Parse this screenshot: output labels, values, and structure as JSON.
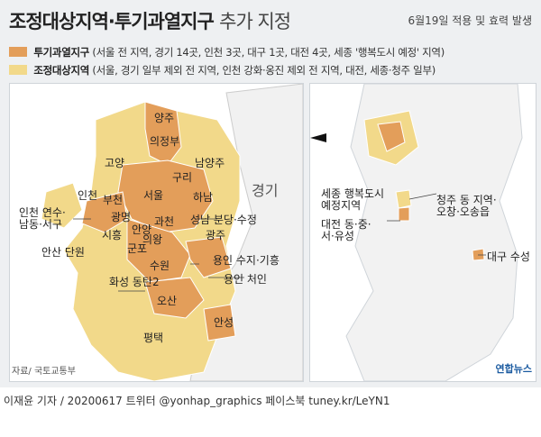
{
  "title": {
    "main": "조정대상지역·투기과열지구",
    "sub": "추가 지정"
  },
  "effective_note": "6월19일 적용 및 효력 발생",
  "legend": [
    {
      "label": "투기과열지구",
      "detail": "(서울 전 지역, 경기 14곳, 인천 3곳, 대구 1곳, 대전 4곳, 세종 '행복도시 예정' 지역)",
      "color": "#e39e5a"
    },
    {
      "label": "조정대상지역",
      "detail": "(서울, 경기 일부 제외 전 지역, 인천 강화·옹진 제외 전 지역, 대전, 세종·청주 일부)",
      "color": "#f2d98a"
    }
  ],
  "left_map": {
    "labels": {
      "yangju": "양주",
      "uijeongbu": "의정부",
      "goyang": "고양",
      "namyangju": "남양주",
      "guri": "구리",
      "incheon": "인천",
      "bucheon": "부천",
      "seoul": "서울",
      "hanam": "하남",
      "gyeonggi": "경기",
      "gwangmyeong": "광명",
      "gwacheon": "과천",
      "incheon_sub": "인천 연수·\n남동·서구",
      "siheung": "시흥",
      "anyang": "안양",
      "seongnam": "성남 분당·수정",
      "uiwang": "의왕",
      "gunpo": "군포",
      "gwangju": "광주",
      "ansan": "안산 단원",
      "suwon": "수원",
      "yongin_sugi": "용인 수지·기흥",
      "hwaseong": "화성 동탄2",
      "yongin_cheoin": "용인 처인",
      "osan": "오산",
      "anseong": "안성",
      "pyeongtaek": "평택"
    },
    "source": "자료/ 국토교통부"
  },
  "right_map": {
    "labels": {
      "sejong": "세종 행복도시\n예정지역",
      "cheongju": "청주 동 지역·\n오창·오송읍",
      "daejeon": "대전 동·중·\n서·유성",
      "daegu": "대구 수성"
    }
  },
  "credit": "이재윤 기자 / 20200617   트위터 @yonhap_graphics  페이스북 tuney.kr/LeYN1",
  "logo": "연합뉴스"
}
